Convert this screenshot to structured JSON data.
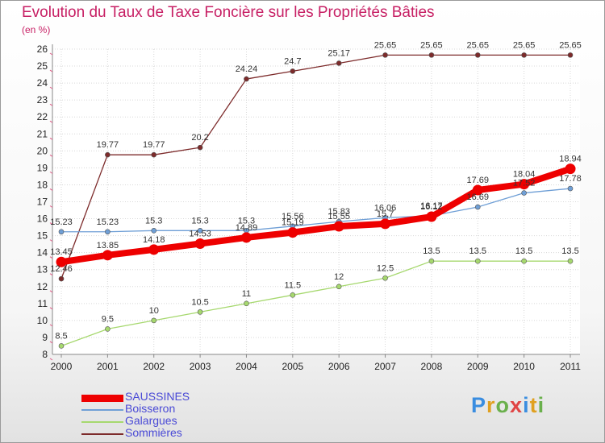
{
  "title": "Evolution du Taux de Taxe Foncière sur les Propriétés Bâties",
  "unit": "(en %)",
  "brand": "Proxiti",
  "brand_colors": [
    "#3a8de0",
    "#e0a020",
    "#6ab04c",
    "#e04545",
    "#3a8de0",
    "#e0a020",
    "#6ab04c"
  ],
  "chart_data": {
    "type": "line",
    "title": "Evolution du Taux de Taxe Foncière sur les Propriétés Bâties",
    "ylabel": "(en %)",
    "xlabel": "",
    "ylim": [
      8,
      26
    ],
    "yticks": [
      "8",
      "9",
      "10",
      "11",
      "12",
      "13",
      "14",
      "15",
      "16",
      "17",
      "18",
      "19",
      "20",
      "21",
      "22",
      "23",
      "24",
      "25",
      "26"
    ],
    "categories": [
      "2000",
      "2001",
      "2002",
      "2003",
      "2004",
      "2005",
      "2006",
      "2007",
      "2008",
      "2009",
      "2010",
      "2011"
    ],
    "series": [
      {
        "name": "SAUSSINES",
        "color": "#ee0000",
        "values": [
          13.45,
          13.85,
          14.18,
          14.53,
          14.89,
          15.19,
          15.55,
          15.7,
          16.12,
          17.69,
          18.04,
          18.94
        ],
        "labels": [
          "13.45",
          "13.85",
          "14.18",
          "14.53",
          "14.89",
          "15.19",
          "15.55",
          "15.7",
          "16.12",
          "17.69",
          "18.04",
          "18.94"
        ]
      },
      {
        "name": "Boisseron",
        "color": "#6f9fd6",
        "values": [
          15.23,
          15.23,
          15.3,
          15.3,
          15.3,
          15.56,
          15.83,
          16.06,
          16.17,
          16.69,
          17.52,
          17.78
        ],
        "labels": [
          "15.23",
          "15.23",
          "15.3",
          "15.3",
          "15.3",
          "15.56",
          "15.83",
          "16.06",
          "16.17",
          "16.69",
          "17.52",
          "17.78"
        ]
      },
      {
        "name": "Galargues",
        "color": "#a6d86e",
        "values": [
          8.5,
          9.5,
          10,
          10.5,
          11,
          11.5,
          12,
          12.5,
          13.5,
          13.5,
          13.5,
          13.5
        ],
        "labels": [
          "8.5",
          "9.5",
          "10",
          "10.5",
          "11",
          "11.5",
          "12",
          "12.5",
          "13.5",
          "13.5",
          "13.5",
          "13.5"
        ]
      },
      {
        "name": "Sommières",
        "color": "#7d2b2b",
        "values": [
          12.46,
          19.77,
          19.77,
          20.2,
          24.24,
          24.7,
          25.17,
          25.65,
          25.65,
          25.65,
          25.65,
          25.65
        ],
        "labels": [
          "12.46",
          "19.77",
          "19.77",
          "20.2",
          "24.24",
          "24.7",
          "25.17",
          "25.65",
          "25.65",
          "25.65",
          "25.65",
          "25.65"
        ]
      }
    ]
  }
}
